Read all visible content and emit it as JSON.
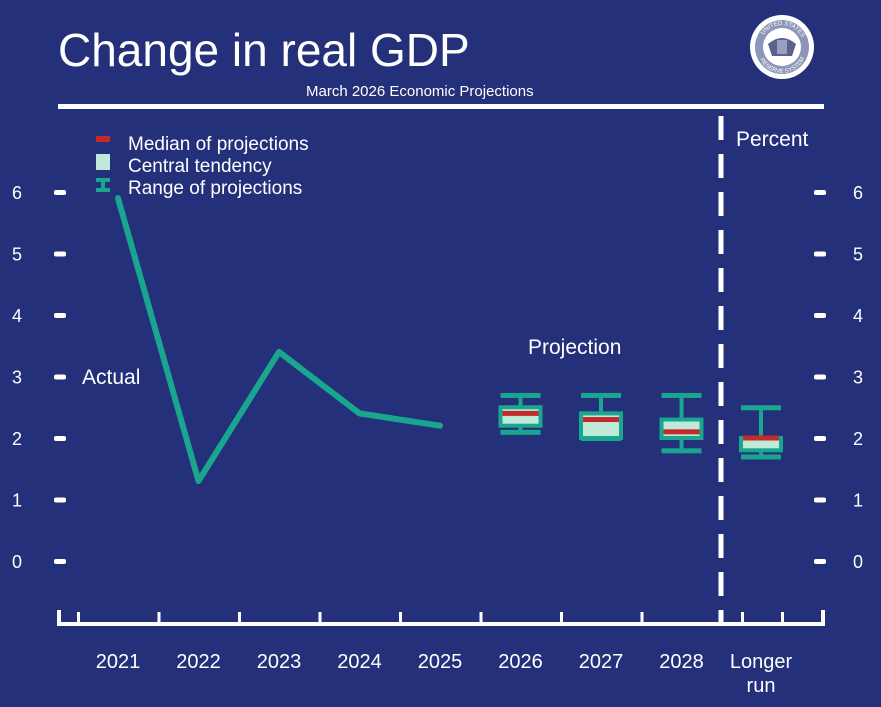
{
  "chart_data": {
    "type": "line",
    "title": "Change in real GDP",
    "subtitle": "March 2026 Economic Projections",
    "unit_label": "Percent",
    "categories": [
      "2021",
      "2022",
      "2023",
      "2024",
      "2025",
      "2026",
      "2027",
      "2028",
      "Longer run"
    ],
    "category_lines": {
      "Longer run": [
        "Longer",
        "run"
      ]
    },
    "ylim": [
      -1,
      7
    ],
    "yticks": [
      0,
      1,
      2,
      3,
      4,
      5,
      6
    ],
    "actual": {
      "label": "Actual",
      "x": [
        "2021",
        "2022",
        "2023",
        "2024",
        "2025"
      ],
      "values": [
        5.9,
        1.3,
        3.4,
        2.4,
        2.2
      ]
    },
    "projection_label": "Projection",
    "projections": [
      {
        "x": "2026",
        "median": 2.4,
        "central_low": 2.2,
        "central_high": 2.5,
        "range_low": 2.1,
        "range_high": 2.7
      },
      {
        "x": "2027",
        "median": 2.3,
        "central_low": 2.0,
        "central_high": 2.4,
        "range_low": 2.0,
        "range_high": 2.7
      },
      {
        "x": "2028",
        "median": 2.1,
        "central_low": 2.0,
        "central_high": 2.3,
        "range_low": 1.8,
        "range_high": 2.7
      },
      {
        "x": "Longer run",
        "median": 2.0,
        "central_low": 1.8,
        "central_high": 2.0,
        "range_low": 1.7,
        "range_high": 2.5
      }
    ],
    "legend": [
      {
        "key": "median",
        "label": "Median of projections"
      },
      {
        "key": "central",
        "label": "Central tendency"
      },
      {
        "key": "range",
        "label": "Range of projections"
      }
    ]
  },
  "colors": {
    "background": "#24307a",
    "line": "#1aa68e",
    "central_fill": "#bfe9d8",
    "median": "#c42a2a",
    "text": "#ffffff"
  },
  "seal": {
    "text_top": "UNITED STATES",
    "text_bottom": "RESERVE SYSTEM",
    "icon": "federal-reserve-seal-icon"
  }
}
